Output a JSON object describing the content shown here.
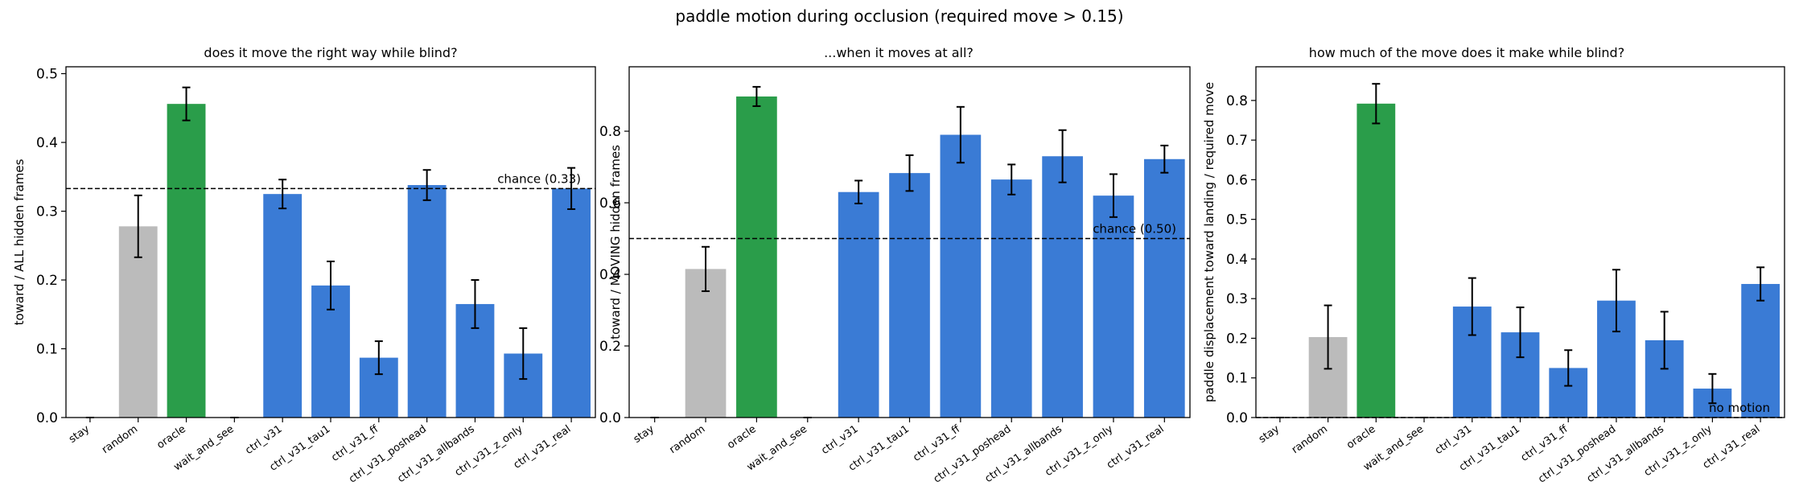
{
  "figure": {
    "suptitle": "paddle motion during occlusion (required move > 0.15)"
  },
  "colors": {
    "baseline_gray": "#bbbbbb",
    "oracle_green": "#2a9d4a",
    "model_blue": "#3a7bd5",
    "error_bar": "#000000",
    "reference_line": "#000000"
  },
  "chart_data": [
    {
      "type": "bar",
      "title": "does it move the right way while blind?",
      "xlabel": "",
      "ylabel": "toward / ALL hidden frames",
      "ylim": [
        0,
        0.51
      ],
      "yticks": [
        "0.0",
        "0.1",
        "0.2",
        "0.3",
        "0.4",
        "0.5"
      ],
      "categories": [
        "stay",
        "random",
        "oracle",
        "wait_and_see",
        "ctrl_v31",
        "ctrl_v31_tau1",
        "ctrl_v31_ff",
        "ctrl_v31_poshead",
        "ctrl_v31_allbands",
        "ctrl_v31_z_only",
        "ctrl_v31_real"
      ],
      "values": [
        0.0,
        0.278,
        0.456,
        0.0,
        0.325,
        0.192,
        0.087,
        0.338,
        0.165,
        0.093,
        0.333
      ],
      "errors": [
        0.0,
        0.045,
        0.024,
        0.0,
        0.021,
        0.035,
        0.024,
        0.022,
        0.035,
        0.037,
        0.03
      ],
      "bar_colors": [
        "model_blue",
        "baseline_gray",
        "oracle_green",
        "model_blue",
        "model_blue",
        "model_blue",
        "model_blue",
        "model_blue",
        "model_blue",
        "model_blue",
        "model_blue"
      ],
      "reference_line": {
        "value": 0.333,
        "label": "chance (0.33)"
      },
      "grid": false
    },
    {
      "type": "bar",
      "title": "...when it moves at all?",
      "xlabel": "",
      "ylabel": "toward / MOVING hidden frames",
      "ylim": [
        0,
        0.98
      ],
      "yticks": [
        "0.0",
        "0.2",
        "0.4",
        "0.6",
        "0.8"
      ],
      "categories": [
        "stay",
        "random",
        "oracle",
        "wait_and_see",
        "ctrl_v31",
        "ctrl_v31_tau1",
        "ctrl_v31_ff",
        "ctrl_v31_poshead",
        "ctrl_v31_allbands",
        "ctrl_v31_z_only",
        "ctrl_v31_real"
      ],
      "values": [
        0.0,
        0.415,
        0.897,
        0.0,
        0.63,
        0.683,
        0.79,
        0.665,
        0.73,
        0.62,
        0.722
      ],
      "errors": [
        0.0,
        0.062,
        0.027,
        0.0,
        0.032,
        0.05,
        0.078,
        0.042,
        0.073,
        0.06,
        0.038
      ],
      "bar_colors": [
        "model_blue",
        "baseline_gray",
        "oracle_green",
        "model_blue",
        "model_blue",
        "model_blue",
        "model_blue",
        "model_blue",
        "model_blue",
        "model_blue",
        "model_blue"
      ],
      "reference_line": {
        "value": 0.5,
        "label": "chance (0.50)"
      },
      "grid": false
    },
    {
      "type": "bar",
      "title": "how much of the move does it make while blind?",
      "xlabel": "",
      "ylabel": "paddle displacement toward landing / required move",
      "ylim": [
        0,
        0.885
      ],
      "yticks": [
        "0.0",
        "0.1",
        "0.2",
        "0.3",
        "0.4",
        "0.5",
        "0.6",
        "0.7",
        "0.8"
      ],
      "categories": [
        "stay",
        "random",
        "oracle",
        "wait_and_see",
        "ctrl_v31",
        "ctrl_v31_tau1",
        "ctrl_v31_ff",
        "ctrl_v31_poshead",
        "ctrl_v31_allbands",
        "ctrl_v31_z_only",
        "ctrl_v31_real"
      ],
      "values": [
        0.0,
        0.203,
        0.792,
        0.0,
        0.28,
        0.215,
        0.125,
        0.295,
        0.195,
        0.073,
        0.337
      ],
      "errors": [
        0.0,
        0.08,
        0.05,
        0.0,
        0.072,
        0.063,
        0.045,
        0.078,
        0.072,
        0.037,
        0.042
      ],
      "bar_colors": [
        "model_blue",
        "baseline_gray",
        "oracle_green",
        "model_blue",
        "model_blue",
        "model_blue",
        "model_blue",
        "model_blue",
        "model_blue",
        "model_blue",
        "model_blue"
      ],
      "reference_line": {
        "value": 0.0,
        "label": "no motion"
      },
      "grid": false
    }
  ]
}
